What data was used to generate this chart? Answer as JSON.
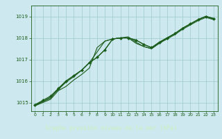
{
  "title": "Graphe pression niveau de la mer (hPa)",
  "bg_color": "#cde8ee",
  "plot_bg": "#cde8ee",
  "grid_color": "#9dc8d0",
  "line_color": "#1a5c1a",
  "footer_bg": "#2a6a2a",
  "footer_text_color": "#cceecc",
  "xlim": [
    -0.5,
    23.5
  ],
  "ylim": [
    1014.6,
    1019.5
  ],
  "yticks": [
    1015,
    1016,
    1017,
    1018,
    1019
  ],
  "xticks": [
    0,
    1,
    2,
    3,
    4,
    5,
    6,
    7,
    8,
    9,
    10,
    11,
    12,
    13,
    14,
    15,
    16,
    17,
    18,
    19,
    20,
    21,
    22,
    23
  ],
  "series": [
    [
      1014.85,
      1015.0,
      1015.15,
      1015.55,
      1015.75,
      1016.05,
      1016.3,
      1016.6,
      1017.55,
      1017.85,
      1017.95,
      1018.0,
      1018.05,
      1017.8,
      1017.6,
      1017.5,
      1017.75,
      1017.95,
      1018.15,
      1018.4,
      1018.6,
      1018.8,
      1018.95,
      1018.85
    ],
    [
      1014.85,
      1015.05,
      1015.25,
      1015.6,
      1015.95,
      1016.2,
      1016.5,
      1016.85,
      1017.35,
      1017.85,
      1017.95,
      1018.0,
      1018.0,
      1017.75,
      1017.6,
      1017.5,
      1017.75,
      1018.0,
      1018.2,
      1018.45,
      1018.65,
      1018.85,
      1019.0,
      1018.85
    ],
    [
      1014.9,
      1015.05,
      1015.2,
      1015.65,
      1016.0,
      1016.25,
      1016.5,
      1016.85,
      1017.1,
      1017.45,
      1017.95,
      1018.0,
      1018.0,
      1017.9,
      1017.7,
      1017.55,
      1017.8,
      1018.0,
      1018.2,
      1018.45,
      1018.65,
      1018.85,
      1019.0,
      1018.9
    ],
    [
      1014.9,
      1015.1,
      1015.3,
      1015.65,
      1016.0,
      1016.25,
      1016.5,
      1016.85,
      1017.1,
      1017.45,
      1017.95,
      1018.0,
      1018.0,
      1017.9,
      1017.7,
      1017.55,
      1017.8,
      1018.0,
      1018.2,
      1018.45,
      1018.65,
      1018.85,
      1019.0,
      1018.9
    ]
  ],
  "marker_indices": [
    0,
    1,
    2,
    3,
    4,
    5,
    6,
    7,
    8,
    9,
    10,
    11,
    12,
    13,
    14,
    15,
    16,
    17,
    18,
    19,
    20,
    21,
    22,
    23
  ]
}
